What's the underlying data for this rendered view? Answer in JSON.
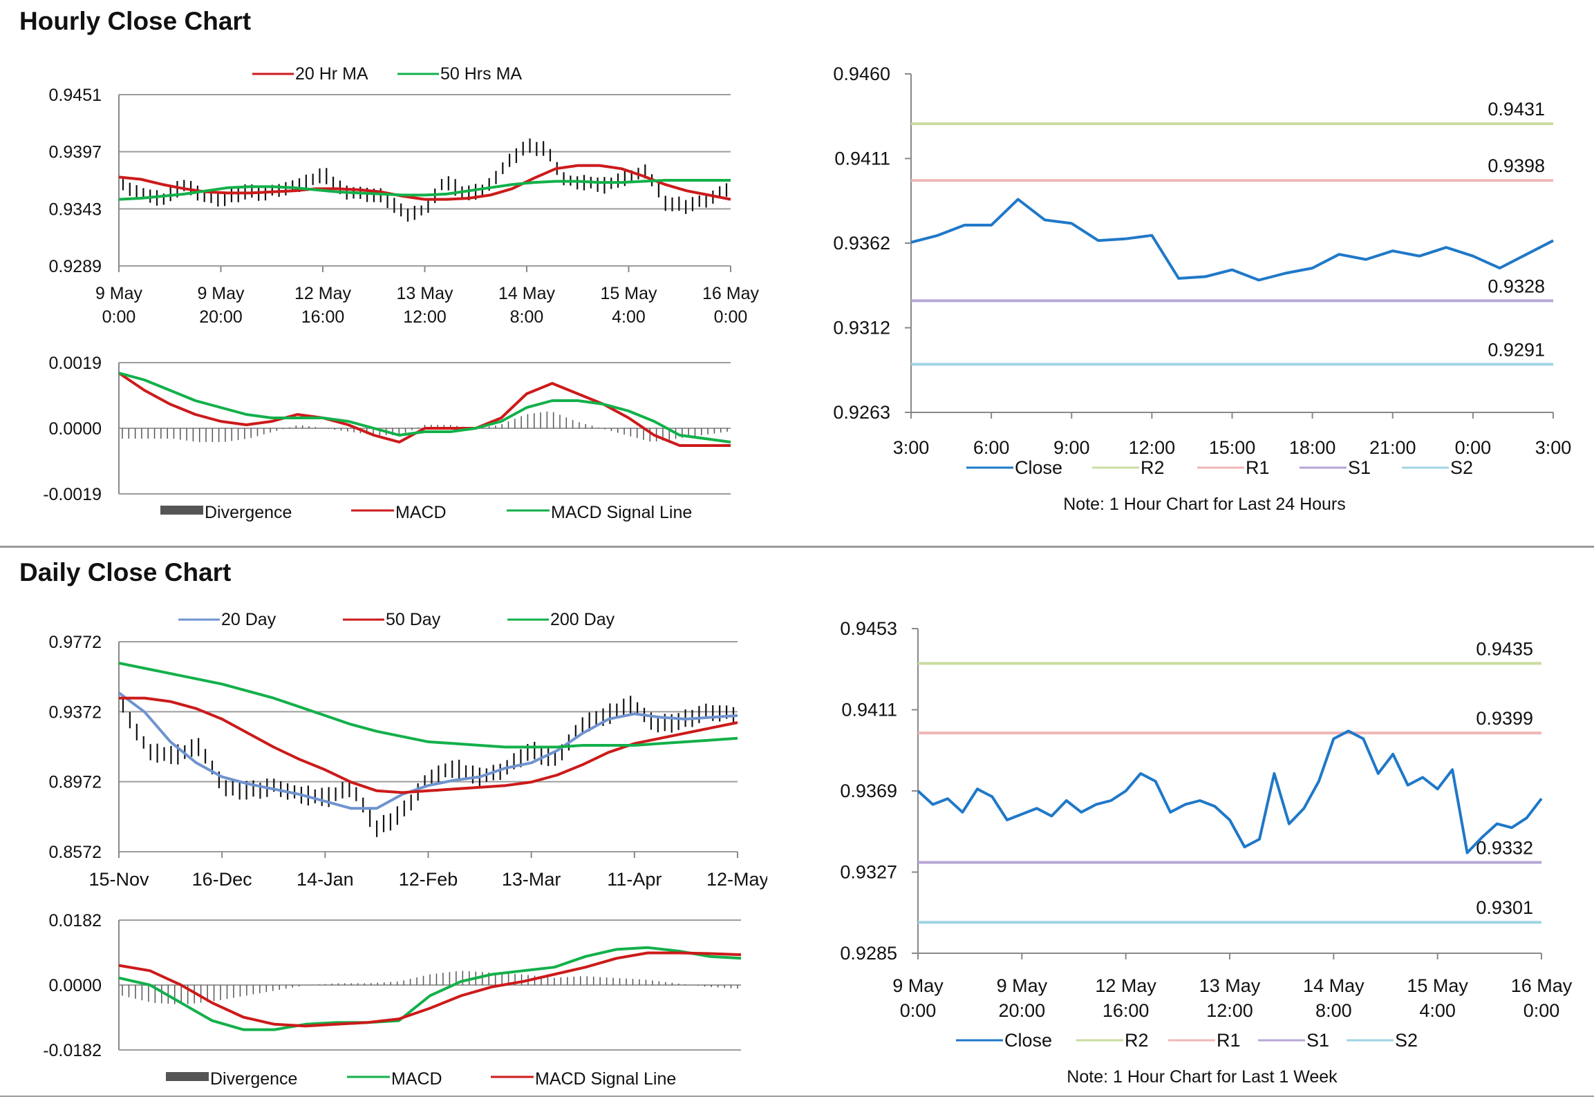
{
  "sections": {
    "hourly_title": "Hourly Close Chart",
    "daily_title": "Daily Close Chart"
  },
  "colors": {
    "ma_red": "#cc1a1a",
    "ma_green": "#12b04a",
    "ma_blue": "#6f93cf",
    "close_blue": "#1f78c8",
    "r2": "#c9dca0",
    "r1": "#f0b6b6",
    "s1": "#b7a6d6",
    "s2": "#9fd4e4",
    "grid": "#9c9c9c",
    "divergence": "#555555"
  },
  "chart_data": [
    {
      "id": "hourly_price",
      "type": "line",
      "kind": "ohlc-with-ma",
      "x_tick_labels": [
        [
          "9 May",
          "0:00"
        ],
        [
          "9 May",
          "20:00"
        ],
        [
          "12 May",
          "16:00"
        ],
        [
          "13 May",
          "12:00"
        ],
        [
          "14 May",
          "8:00"
        ],
        [
          "15 May",
          "4:00"
        ],
        [
          "16 May",
          "0:00"
        ]
      ],
      "y_ticks": [
        "0.9451",
        "0.9397",
        "0.9343",
        "0.9289"
      ],
      "ylim": [
        0.9289,
        0.9451
      ],
      "legend": [
        "20 Hr MA",
        "50 Hrs MA"
      ],
      "series": [
        {
          "name": "20 Hr MA",
          "color": "red",
          "values": [
            0.9373,
            0.9371,
            0.9366,
            0.9362,
            0.9359,
            0.9358,
            0.9358,
            0.9359,
            0.936,
            0.9362,
            0.9362,
            0.9361,
            0.9359,
            0.9355,
            0.9352,
            0.9352,
            0.9353,
            0.9356,
            0.9362,
            0.9372,
            0.9381,
            0.9384,
            0.9384,
            0.9381,
            0.9374,
            0.9366,
            0.936,
            0.9356,
            0.9352
          ]
        },
        {
          "name": "50 Hrs MA",
          "color": "green",
          "values": [
            0.9352,
            0.9353,
            0.9355,
            0.9357,
            0.936,
            0.9363,
            0.9364,
            0.9364,
            0.9363,
            0.9361,
            0.9359,
            0.9358,
            0.9357,
            0.9356,
            0.9356,
            0.9357,
            0.936,
            0.9363,
            0.9366,
            0.9368,
            0.9369,
            0.9369,
            0.9368,
            0.9368,
            0.9369,
            0.937,
            0.937,
            0.937,
            0.937
          ]
        },
        {
          "name": "Price",
          "color": "black",
          "values": [
            0.9365,
            0.9358,
            0.9352,
            0.9366,
            0.9356,
            0.9352,
            0.9359,
            0.9358,
            0.9363,
            0.9367,
            0.9376,
            0.936,
            0.9358,
            0.9354,
            0.9338,
            0.9342,
            0.937,
            0.9357,
            0.9362,
            0.9385,
            0.9402,
            0.94,
            0.937,
            0.9368,
            0.9365,
            0.9373,
            0.938,
            0.9348,
            0.9346,
            0.9352,
            0.9362
          ]
        }
      ]
    },
    {
      "id": "hourly_macd",
      "type": "line",
      "kind": "macd",
      "y_ticks": [
        "0.0019",
        "0.0000",
        "-0.0019"
      ],
      "ylim": [
        -0.0019,
        0.0019
      ],
      "legend": [
        "Divergence",
        "MACD",
        "MACD Signal Line"
      ],
      "series": [
        {
          "name": "MACD",
          "color": "red",
          "values": [
            0.0016,
            0.0011,
            0.0007,
            0.0004,
            0.0002,
            0.0001,
            0.0002,
            0.0004,
            0.0003,
            0.0001,
            -0.0002,
            -0.0004,
            0.0,
            0.0,
            0.0,
            0.0003,
            0.001,
            0.0013,
            0.001,
            0.0007,
            0.0003,
            -0.0002,
            -0.0005,
            -0.0005,
            -0.0005
          ]
        },
        {
          "name": "MACD Signal Line",
          "color": "green",
          "values": [
            0.0016,
            0.0014,
            0.0011,
            0.0008,
            0.0006,
            0.0004,
            0.0003,
            0.0003,
            0.0003,
            0.0002,
            0.0,
            -0.0002,
            -0.0001,
            -0.0001,
            0.0,
            0.0002,
            0.0006,
            0.0008,
            0.0008,
            0.0007,
            0.0005,
            0.0002,
            -0.0002,
            -0.0003,
            -0.0004
          ]
        },
        {
          "name": "Divergence",
          "color": "gray",
          "values": [
            -0.0003,
            -0.0003,
            -0.0003,
            -0.0004,
            -0.0004,
            -0.0003,
            -0.0001,
            0.0001,
            0.0,
            -0.0001,
            -0.0002,
            -0.0002,
            0.0001,
            0.0001,
            0.0,
            0.0001,
            0.0004,
            0.0005,
            0.0002,
            0.0,
            -0.0002,
            -0.0004,
            -0.0003,
            -0.0002,
            -0.0001
          ]
        }
      ]
    },
    {
      "id": "hourly_24h",
      "type": "line",
      "x_tick_labels": [
        "3:00",
        "6:00",
        "9:00",
        "12:00",
        "15:00",
        "18:00",
        "21:00",
        "0:00",
        "3:00"
      ],
      "y_ticks": [
        "0.9460",
        "0.9411",
        "0.9362",
        "0.9312",
        "0.9263"
      ],
      "ylim": [
        0.9263,
        0.946
      ],
      "levels": [
        {
          "name": "R2",
          "value": 0.9431,
          "label": "0.9431",
          "colorKey": "r2"
        },
        {
          "name": "R1",
          "value": 0.9398,
          "label": "0.9398",
          "colorKey": "r1"
        },
        {
          "name": "S1",
          "value": 0.9328,
          "label": "0.9328",
          "colorKey": "s1"
        },
        {
          "name": "S2",
          "value": 0.9291,
          "label": "0.9291",
          "colorKey": "s2"
        }
      ],
      "legend": [
        "Close",
        "R2",
        "R1",
        "S1",
        "S2"
      ],
      "note": "Note: 1 Hour Chart for Last 24 Hours",
      "series": [
        {
          "name": "Close",
          "values": [
            0.9362,
            0.9366,
            0.9372,
            0.9372,
            0.9387,
            0.9375,
            0.9373,
            0.9363,
            0.9364,
            0.9366,
            0.9341,
            0.9342,
            0.9346,
            0.934,
            0.9344,
            0.9347,
            0.9355,
            0.9352,
            0.9357,
            0.9354,
            0.9359,
            0.9354,
            0.9347,
            0.9355,
            0.9363
          ]
        }
      ]
    },
    {
      "id": "daily_price",
      "type": "line",
      "kind": "ohlc-with-ma",
      "x_tick_labels": [
        "15-Nov",
        "16-Dec",
        "14-Jan",
        "12-Feb",
        "13-Mar",
        "11-Apr",
        "12-May"
      ],
      "y_ticks": [
        "0.9772",
        "0.9372",
        "0.8972",
        "0.8572"
      ],
      "ylim": [
        0.8572,
        0.9772
      ],
      "legend": [
        "20 Day",
        "50 Day",
        "200 Day"
      ],
      "series": [
        {
          "name": "20 Day",
          "color": "blue",
          "values": [
            0.948,
            0.937,
            0.92,
            0.908,
            0.9,
            0.896,
            0.893,
            0.89,
            0.886,
            0.882,
            0.882,
            0.89,
            0.895,
            0.898,
            0.9,
            0.905,
            0.908,
            0.915,
            0.925,
            0.933,
            0.936,
            0.934,
            0.933,
            0.934,
            0.935
          ]
        },
        {
          "name": "50 Day",
          "color": "red",
          "values": [
            0.945,
            0.945,
            0.943,
            0.939,
            0.933,
            0.925,
            0.917,
            0.91,
            0.904,
            0.897,
            0.892,
            0.891,
            0.892,
            0.893,
            0.894,
            0.895,
            0.897,
            0.901,
            0.907,
            0.914,
            0.919,
            0.922,
            0.925,
            0.928,
            0.931
          ]
        },
        {
          "name": "200 Day",
          "color": "green",
          "values": [
            0.965,
            0.962,
            0.959,
            0.956,
            0.953,
            0.949,
            0.945,
            0.94,
            0.935,
            0.93,
            0.926,
            0.923,
            0.92,
            0.919,
            0.918,
            0.917,
            0.917,
            0.917,
            0.918,
            0.918,
            0.918,
            0.919,
            0.92,
            0.921,
            0.922
          ]
        },
        {
          "name": "Price",
          "color": "black",
          "values": [
            0.94,
            0.915,
            0.912,
            0.918,
            0.894,
            0.892,
            0.895,
            0.89,
            0.888,
            0.895,
            0.87,
            0.88,
            0.9,
            0.905,
            0.9,
            0.905,
            0.915,
            0.91,
            0.93,
            0.935,
            0.942,
            0.93,
            0.932,
            0.938,
            0.936
          ]
        }
      ]
    },
    {
      "id": "daily_macd",
      "type": "line",
      "kind": "macd",
      "y_ticks": [
        "0.0182",
        "0.0000",
        "-0.0182"
      ],
      "ylim": [
        -0.0182,
        0.0182
      ],
      "legend": [
        "Divergence",
        "MACD",
        "MACD Signal Line"
      ],
      "series": [
        {
          "name": "MACD",
          "color": "green",
          "values": [
            0.002,
            0.0,
            -0.005,
            -0.01,
            -0.0125,
            -0.0125,
            -0.011,
            -0.0105,
            -0.0105,
            -0.01,
            -0.003,
            0.001,
            0.003,
            0.004,
            0.005,
            0.008,
            0.01,
            0.0105,
            0.0095,
            0.008,
            0.0075
          ]
        },
        {
          "name": "MACD Signal Line",
          "color": "red",
          "values": [
            0.0055,
            0.004,
            0.0,
            -0.005,
            -0.009,
            -0.011,
            -0.0115,
            -0.011,
            -0.0105,
            -0.0095,
            -0.0065,
            -0.003,
            -0.0005,
            0.001,
            0.003,
            0.005,
            0.0075,
            0.009,
            0.009,
            0.0088,
            0.0085
          ]
        },
        {
          "name": "Divergence",
          "color": "gray",
          "values": [
            -0.003,
            -0.005,
            -0.0055,
            -0.0045,
            -0.003,
            -0.0015,
            0.0,
            0.0005,
            0.0005,
            0.001,
            0.003,
            0.004,
            0.0035,
            0.003,
            0.002,
            0.0025,
            0.002,
            0.0015,
            0.0005,
            -0.0005,
            -0.001
          ]
        }
      ]
    },
    {
      "id": "hourly_week",
      "type": "line",
      "x_tick_labels": [
        [
          "9 May",
          "0:00"
        ],
        [
          "9 May",
          "20:00"
        ],
        [
          "12 May",
          "16:00"
        ],
        [
          "13 May",
          "12:00"
        ],
        [
          "14 May",
          "8:00"
        ],
        [
          "15 May",
          "4:00"
        ],
        [
          "16 May",
          "0:00"
        ]
      ],
      "y_ticks": [
        "0.9453",
        "0.9411",
        "0.9369",
        "0.9327",
        "0.9285"
      ],
      "ylim": [
        0.9285,
        0.9453
      ],
      "levels": [
        {
          "name": "R2",
          "value": 0.9435,
          "label": "0.9435",
          "colorKey": "r2"
        },
        {
          "name": "R1",
          "value": 0.9399,
          "label": "0.9399",
          "colorKey": "r1"
        },
        {
          "name": "S1",
          "value": 0.9332,
          "label": "0.9332",
          "colorKey": "s1"
        },
        {
          "name": "S2",
          "value": 0.9301,
          "label": "0.9301",
          "colorKey": "s2"
        }
      ],
      "legend": [
        "Close",
        "R2",
        "R1",
        "S1",
        "S2"
      ],
      "note": "Note: 1 Hour Chart for Last 1 Week",
      "series": [
        {
          "name": "Close",
          "values": [
            0.9369,
            0.9362,
            0.9365,
            0.9358,
            0.937,
            0.9366,
            0.9354,
            0.9357,
            0.936,
            0.9356,
            0.9364,
            0.9358,
            0.9362,
            0.9364,
            0.9369,
            0.9378,
            0.9374,
            0.9358,
            0.9362,
            0.9364,
            0.9361,
            0.9354,
            0.934,
            0.9344,
            0.9378,
            0.9352,
            0.936,
            0.9374,
            0.9396,
            0.94,
            0.9396,
            0.9378,
            0.9388,
            0.9372,
            0.9376,
            0.937,
            0.938,
            0.9337,
            0.9345,
            0.9352,
            0.935,
            0.9355,
            0.9365
          ]
        }
      ]
    }
  ]
}
